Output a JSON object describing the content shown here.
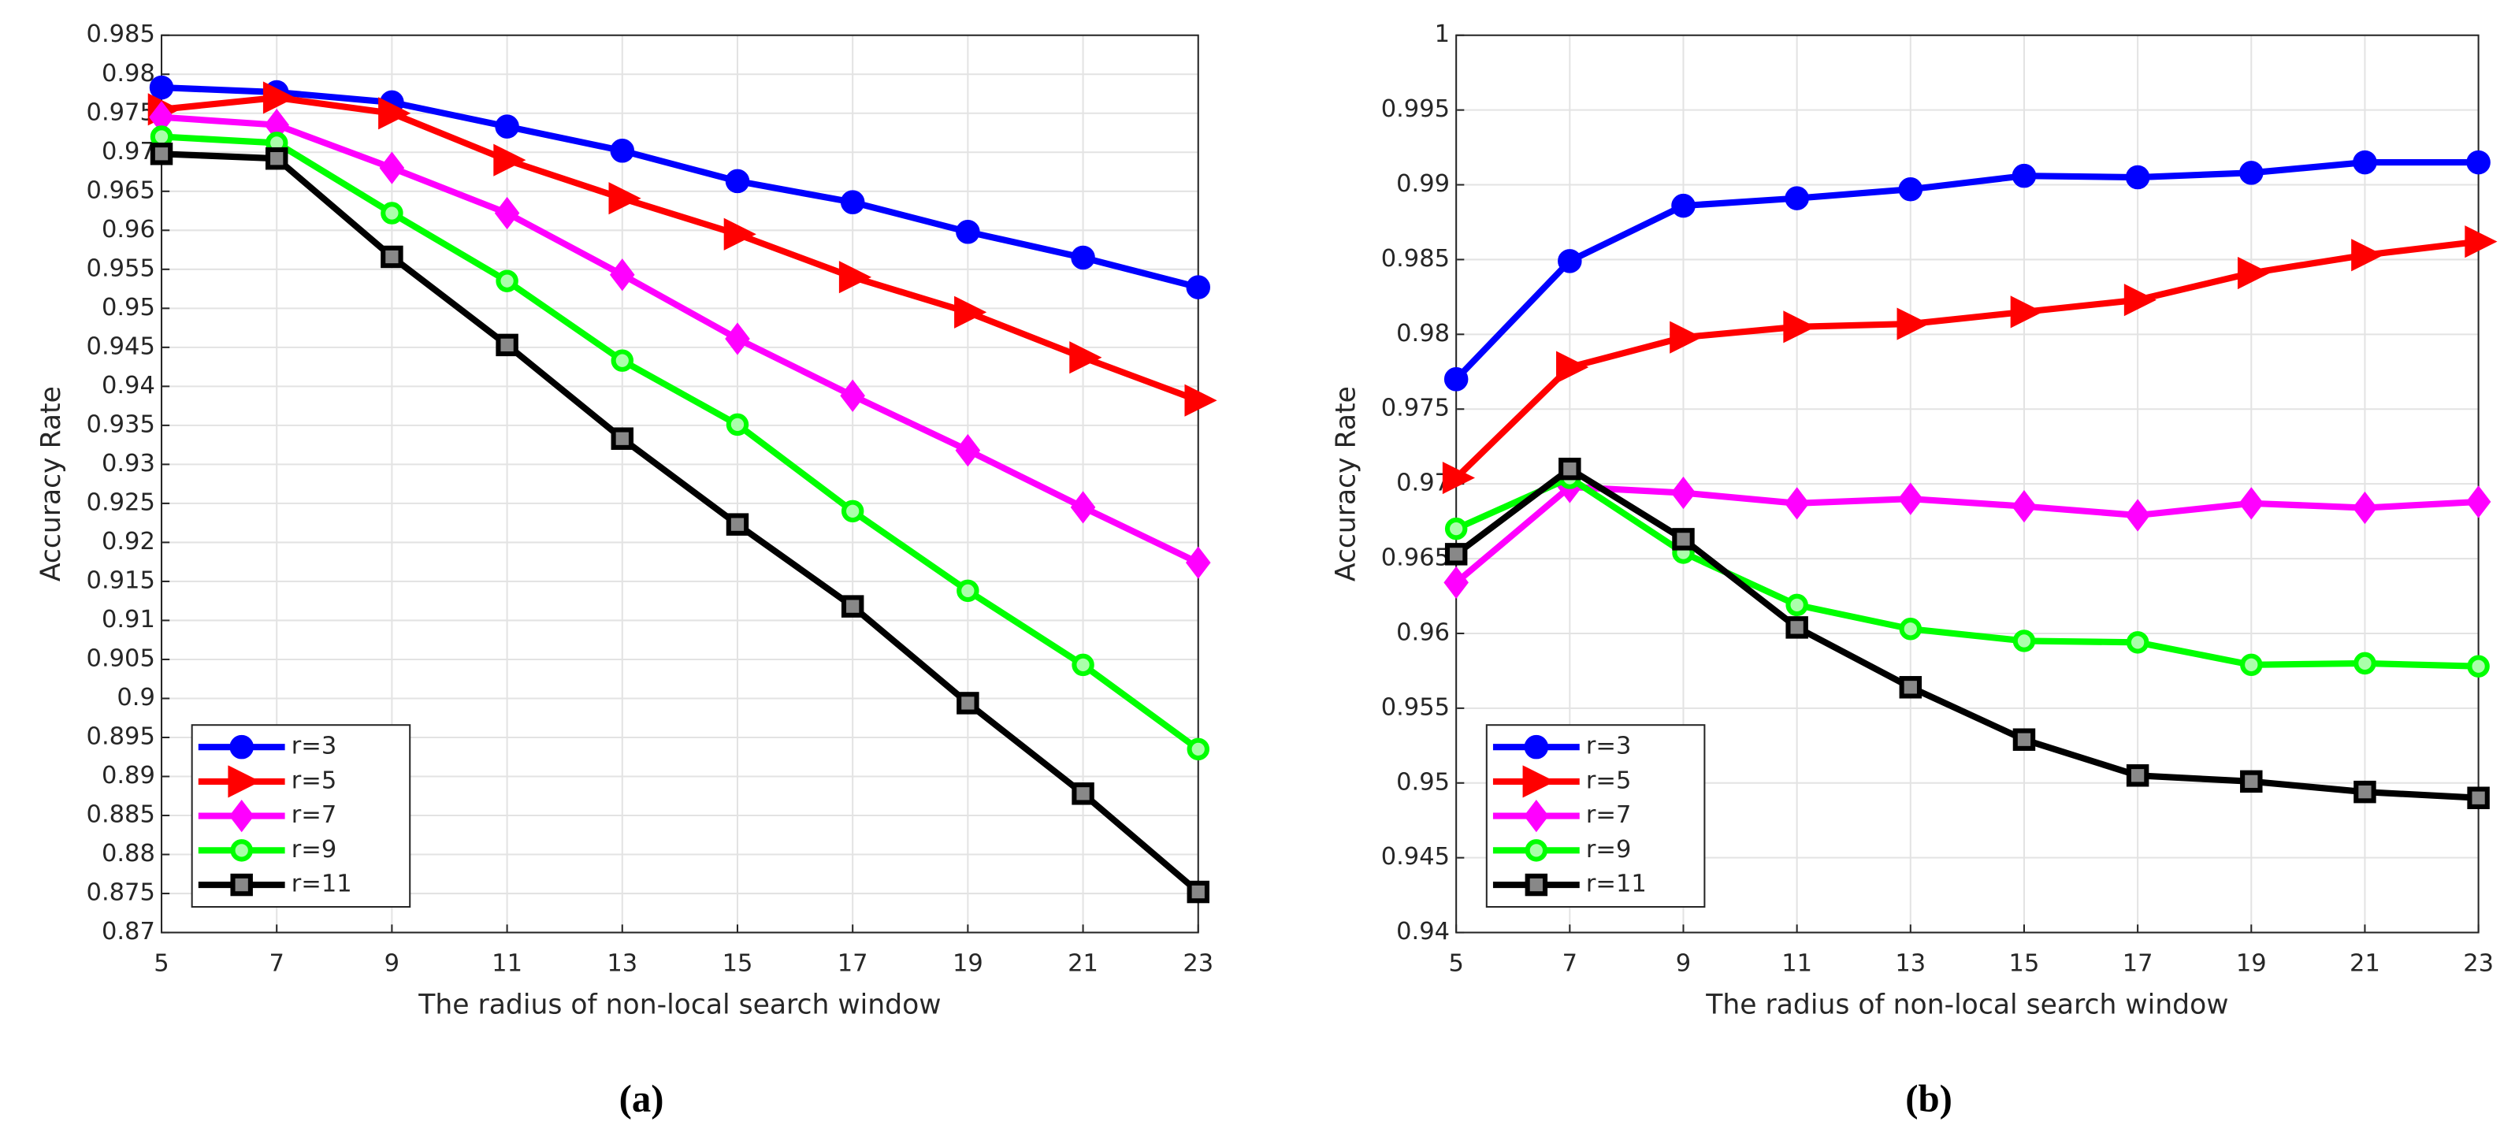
{
  "chart_data": [
    {
      "type": "line",
      "caption": "(a)",
      "xlabel": "The radius of non-local search window",
      "ylabel": "Accuracy Rate",
      "x": [
        5,
        7,
        9,
        11,
        13,
        15,
        17,
        19,
        21,
        23
      ],
      "xlim": [
        5,
        23
      ],
      "xticks": [
        5,
        7,
        9,
        11,
        13,
        15,
        17,
        19,
        21,
        23
      ],
      "ylim": [
        0.87,
        0.985
      ],
      "yticks": [
        0.87,
        0.875,
        0.88,
        0.885,
        0.89,
        0.895,
        0.9,
        0.905,
        0.91,
        0.915,
        0.92,
        0.925,
        0.93,
        0.935,
        0.94,
        0.945,
        0.95,
        0.955,
        0.96,
        0.965,
        0.97,
        0.975,
        0.98,
        0.985
      ],
      "grid": true,
      "legend": "lower left",
      "series": [
        {
          "name": "r=3",
          "color": "#0000ff",
          "marker": "circle",
          "values": [
            0.9783,
            0.9777,
            0.9764,
            0.9733,
            0.9702,
            0.9663,
            0.9636,
            0.9598,
            0.9565,
            0.9527
          ]
        },
        {
          "name": "r=5",
          "color": "#ff0000",
          "marker": "triangle-right",
          "values": [
            0.9755,
            0.977,
            0.975,
            0.969,
            0.9641,
            0.9595,
            0.954,
            0.9495,
            0.9437,
            0.9382
          ]
        },
        {
          "name": "r=7",
          "color": "#ff00ff",
          "marker": "diamond",
          "values": [
            0.9745,
            0.9735,
            0.968,
            0.9622,
            0.9543,
            0.9461,
            0.9388,
            0.9318,
            0.9245,
            0.9174
          ]
        },
        {
          "name": "r=9",
          "color": "#00ff00",
          "marker": "circle-open",
          "values": [
            0.972,
            0.9712,
            0.9622,
            0.9535,
            0.9433,
            0.9351,
            0.924,
            0.9138,
            0.9043,
            0.8935
          ]
        },
        {
          "name": "r=11",
          "color": "#000000",
          "marker": "square",
          "values": [
            0.9698,
            0.9692,
            0.9566,
            0.9453,
            0.9333,
            0.9223,
            0.9118,
            0.8994,
            0.8878,
            0.8752
          ]
        }
      ]
    },
    {
      "type": "line",
      "caption": "(b)",
      "xlabel": "The radius of non-local search window",
      "ylabel": "Accuracy Rate",
      "x": [
        5,
        7,
        9,
        11,
        13,
        15,
        17,
        19,
        21,
        23
      ],
      "xlim": [
        5,
        23
      ],
      "xticks": [
        5,
        7,
        9,
        11,
        13,
        15,
        17,
        19,
        21,
        23
      ],
      "ylim": [
        0.94,
        1
      ],
      "yticks": [
        0.94,
        0.945,
        0.95,
        0.955,
        0.96,
        0.965,
        0.97,
        0.975,
        0.98,
        0.985,
        0.99,
        0.995,
        1
      ],
      "grid": true,
      "legend": "lower left",
      "series": [
        {
          "name": "r=3",
          "color": "#0000ff",
          "marker": "circle",
          "values": [
            0.977,
            0.9849,
            0.9886,
            0.9891,
            0.9897,
            0.9906,
            0.9905,
            0.9908,
            0.9915,
            0.9915
          ]
        },
        {
          "name": "r=5",
          "color": "#ff0000",
          "marker": "triangle-right",
          "values": [
            0.9704,
            0.9778,
            0.9798,
            0.9805,
            0.9807,
            0.9815,
            0.9823,
            0.9841,
            0.9853,
            0.9862
          ]
        },
        {
          "name": "r=7",
          "color": "#ff00ff",
          "marker": "diamond",
          "values": [
            0.9634,
            0.9698,
            0.9694,
            0.9687,
            0.969,
            0.9685,
            0.9679,
            0.9687,
            0.9684,
            0.9688
          ]
        },
        {
          "name": "r=9",
          "color": "#00ff00",
          "marker": "circle-open",
          "values": [
            0.967,
            0.9704,
            0.9654,
            0.9619,
            0.9603,
            0.9595,
            0.9594,
            0.9579,
            0.958,
            0.9578
          ]
        },
        {
          "name": "r=11",
          "color": "#000000",
          "marker": "square",
          "values": [
            0.9653,
            0.971,
            0.9663,
            0.9604,
            0.9564,
            0.9529,
            0.9505,
            0.9501,
            0.9494,
            0.949
          ]
        }
      ]
    }
  ]
}
